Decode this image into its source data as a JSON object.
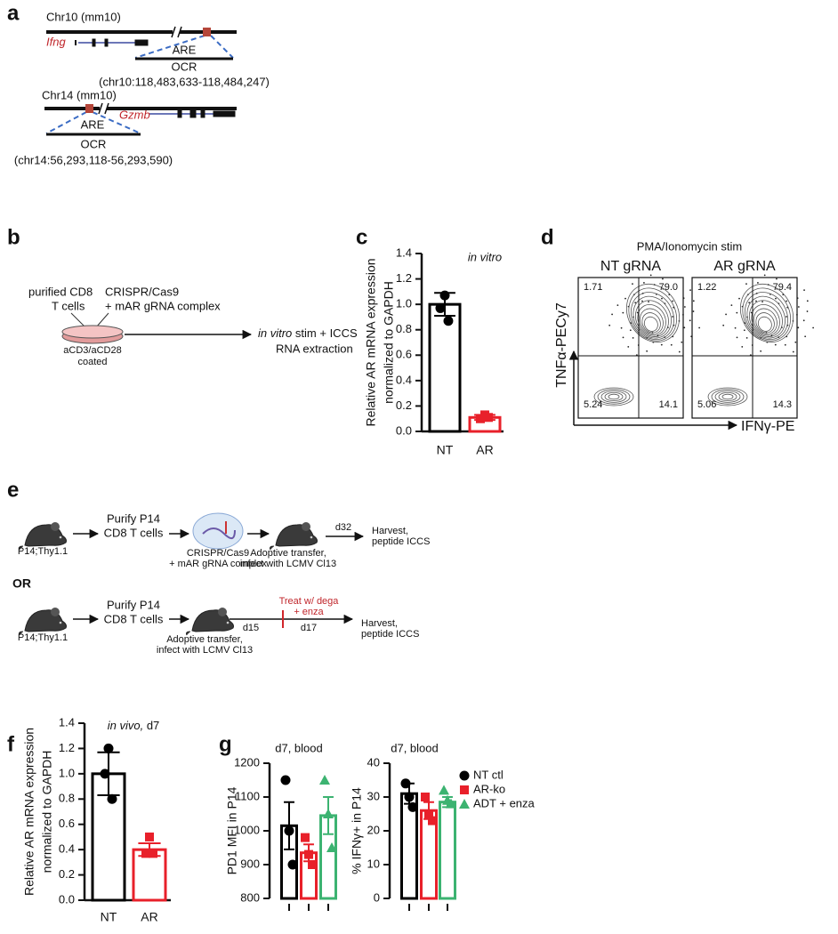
{
  "panels": {
    "a": {
      "label": "a",
      "loci": [
        {
          "chromosome": "Chr10 (mm10)",
          "gene": "Ifng",
          "element": "ARE",
          "region": "OCR",
          "coordinates": "(chr10:118,483,633-118,484,247)"
        },
        {
          "chromosome": "Chr14 (mm10)",
          "gene": "Gzmb",
          "element": "ARE",
          "region": "OCR",
          "coordinates": "(chr14:56,293,118-56,293,590)"
        }
      ]
    },
    "b": {
      "label": "b",
      "cells": [
        "purified CD8",
        "T cells"
      ],
      "reagent": [
        "CRISPR/Cas9",
        "+ mAR gRNA complex"
      ],
      "coating": [
        "aCD3/aCD28",
        "coated"
      ],
      "readout": [
        "in vitro",
        "stim + ICCS",
        "RNA extraction"
      ]
    },
    "c": {
      "label": "c"
    },
    "d": {
      "label": "d",
      "title": "PMA/Ionomycin stim",
      "y_axis": "TNFα-PECy7",
      "x_axis": "IFNγ-PE",
      "plots": [
        {
          "name": "NT gRNA",
          "quadrants": [
            "1.71",
            "79.0",
            "5.24",
            "14.1"
          ]
        },
        {
          "name": "AR gRNA",
          "quadrants": [
            "1.22",
            "79.4",
            "5.06",
            "14.3"
          ]
        }
      ]
    },
    "e": {
      "label": "e",
      "route1": {
        "mouse": "P14;Thy1.1",
        "purify": [
          "Purify P14",
          "CD8 T cells"
        ],
        "edit": [
          "CRISPR/Cas9",
          "+ mAR gRNA complex"
        ],
        "transfer": [
          "Adoptive transfer,",
          "infect with LCMV Cl13"
        ],
        "day": "d32",
        "harvest": [
          "Harvest,",
          "peptide ICCS"
        ]
      },
      "or": "OR",
      "route2": {
        "mouse": "P14;Thy1.1",
        "purify": [
          "Purify P14",
          "CD8 T cells"
        ],
        "transfer": [
          "Adoptive transfer,",
          "infect with LCMV Cl13"
        ],
        "day_start": "d15",
        "treatment": [
          "Treat w/ dega",
          "+ enza"
        ],
        "day_end": "d17",
        "harvest": [
          "Harvest,",
          "peptide ICCS"
        ]
      }
    },
    "f": {
      "label": "f"
    },
    "g": {
      "label": "g"
    }
  },
  "chart_data": [
    {
      "type": "bar",
      "title": "in vitro",
      "ylabel": [
        "Relative AR mRNA expression",
        "normalized to GAPDH"
      ],
      "categories": [
        "NT",
        "AR"
      ],
      "values": [
        1.0,
        0.11
      ],
      "errors": [
        0.09,
        0.02
      ],
      "points": [
        [
          1.07,
          0.97,
          0.87
        ],
        [
          0.13,
          0.1,
          0.11
        ]
      ],
      "colors": [
        "#000000",
        "#e8202a"
      ],
      "markers": [
        "circle",
        "square"
      ],
      "ylim": [
        0,
        1.4
      ],
      "yticks": [
        {
          "value": 0,
          "label": "0.0"
        },
        0.2,
        0.4,
        0.6,
        0.8,
        {
          "value": 1,
          "label": "1.0"
        },
        1.2,
        1.4
      ]
    },
    {
      "type": "bar",
      "title": [
        "in vivo,",
        "d7"
      ],
      "ylabel": [
        "Relative AR mRNA expression",
        "normalized to GAPDH"
      ],
      "categories": [
        "NT",
        "AR"
      ],
      "values": [
        1.0,
        0.4
      ],
      "errors": [
        0.17,
        0.05
      ],
      "points": [
        [
          1.2,
          1.0,
          0.8
        ],
        [
          0.5,
          0.37,
          0.37
        ]
      ],
      "colors": [
        "#000000",
        "#e8202a"
      ],
      "markers": [
        "circle",
        "square"
      ],
      "ylim": [
        0,
        1.4
      ],
      "yticks": [
        {
          "value": 0,
          "label": "0.0"
        },
        0.2,
        0.4,
        0.6,
        0.8,
        {
          "value": 1,
          "label": "1.0"
        },
        1.2,
        1.4
      ]
    },
    {
      "type": "bar",
      "title": "d7, blood",
      "ylabel": [
        "PD1 MFI in P14"
      ],
      "series": [
        {
          "color": "#000000",
          "marker": "circle",
          "values": [
            1015
          ],
          "errors": [
            70
          ],
          "points": [
            [
              1150,
              1000,
              900
            ]
          ]
        },
        {
          "color": "#e8202a",
          "marker": "square",
          "values": [
            935
          ],
          "errors": [
            25
          ],
          "points": [
            [
              980,
              930,
              900
            ]
          ]
        },
        {
          "color": "#3cb371",
          "marker": "triangle",
          "values": [
            1045
          ],
          "errors": [
            55
          ],
          "points": [
            [
              1150,
              1050,
              950
            ]
          ]
        }
      ],
      "ylim": [
        800,
        1200
      ],
      "yticks": [
        800,
        900,
        1000,
        1100,
        1200
      ]
    },
    {
      "type": "bar",
      "title": "d7, blood",
      "ylabel": [
        "% IFNγ+ in P14"
      ],
      "series": [
        {
          "name": "NT ctl",
          "color": "#000000",
          "marker": "circle",
          "values": [
            31
          ],
          "errors": [
            3
          ],
          "points": [
            [
              34,
              30,
              27
            ]
          ]
        },
        {
          "name": "AR-ko",
          "color": "#e8202a",
          "marker": "square",
          "values": [
            26
          ],
          "errors": [
            2.5
          ],
          "points": [
            [
              30,
              25,
              23
            ]
          ]
        },
        {
          "name": "ADT + enza",
          "color": "#3cb371",
          "marker": "triangle",
          "values": [
            28.5
          ],
          "errors": [
            1.5
          ],
          "points": [
            [
              32,
              29,
              28
            ]
          ]
        }
      ],
      "ylim": [
        0,
        40
      ],
      "yticks": [
        0,
        10,
        20,
        30,
        40
      ],
      "legend": "right"
    }
  ]
}
